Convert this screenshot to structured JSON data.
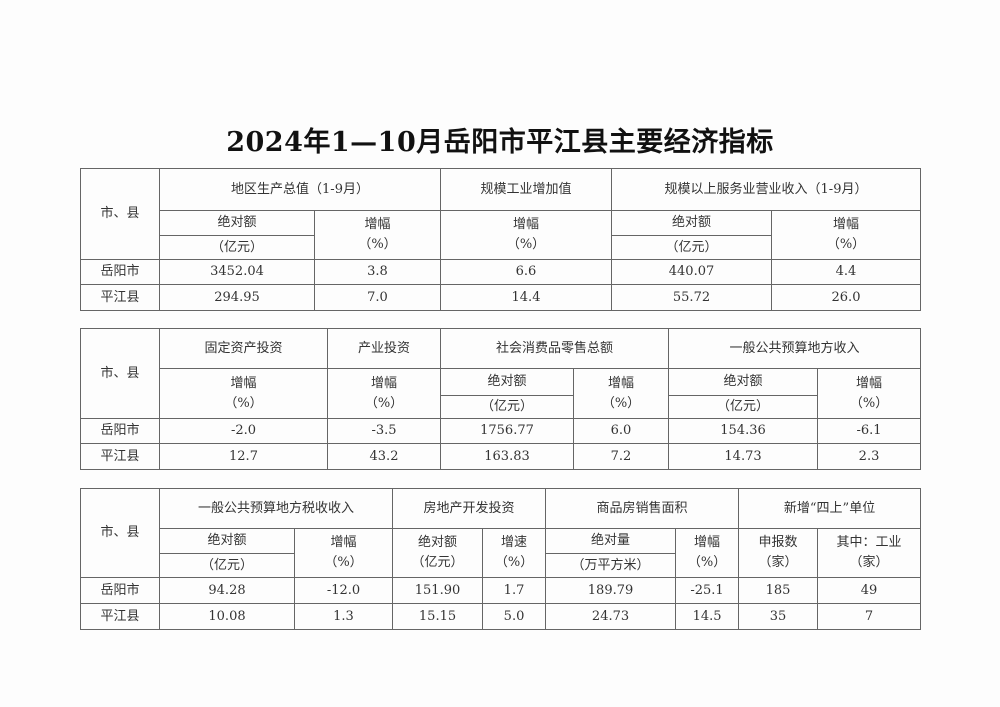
{
  "title": "2024年1—10月岳阳市平江县主要经济指标",
  "tables": [
    {
      "header_rows": [
        [
          "市、县",
          "地区生产总值（1-9月）",
          "规模工业增加值",
          "规模以上服务业营业收入（1-9月）"
        ],
        [
          "绝对额",
          "增幅\n（%）",
          "增幅\n（%）",
          "绝对额",
          "增幅\n（%）"
        ],
        [
          "（亿元）",
          "（亿元）"
        ]
      ],
      "rows": [
        [
          "岳阳市",
          "3452.04",
          "3.8",
          "6.6",
          "440.07",
          "4.4"
        ],
        [
          "平江县",
          "294.95",
          "7.0",
          "14.4",
          "55.72",
          "26.0"
        ]
      ]
    },
    {
      "header_rows": [
        [
          "市、县",
          "固定资产投资",
          "产业投资",
          "社会消费品零售总额",
          "一般公共预算地方收入"
        ],
        [
          "增幅\n（%）",
          "增幅\n（%）",
          "绝对额",
          "增幅\n（%）",
          "绝对额",
          "增幅\n（%）"
        ],
        [
          "（亿元）",
          "（亿元）"
        ]
      ],
      "rows": [
        [
          "岳阳市",
          "-2.0",
          "-3.5",
          "1756.77",
          "6.0",
          "154.36",
          "-6.1"
        ],
        [
          "平江县",
          "12.7",
          "43.2",
          "163.83",
          "7.2",
          "14.73",
          "2.3"
        ]
      ]
    },
    {
      "header_rows": [
        [
          "市、县",
          "一般公共预算地方税收收入",
          "房地产开发投资",
          "商品房销售面积",
          "新增“四上”单位"
        ],
        [
          "绝对额",
          "增幅\n（%）",
          "绝对额\n（亿元）",
          "增速\n（%）",
          "绝对量",
          "增幅\n（%）",
          "申报数\n（家）",
          "其中：工业\n（家）"
        ],
        [
          "（亿元）",
          "（万平方米）"
        ]
      ],
      "rows": [
        [
          "岳阳市",
          "94.28",
          "-12.0",
          "151.90",
          "1.7",
          "189.79",
          "-25.1",
          "185",
          "49"
        ],
        [
          "平江县",
          "10.08",
          "1.3",
          "15.15",
          "5.0",
          "24.73",
          "14.5",
          "35",
          "7"
        ]
      ]
    }
  ]
}
